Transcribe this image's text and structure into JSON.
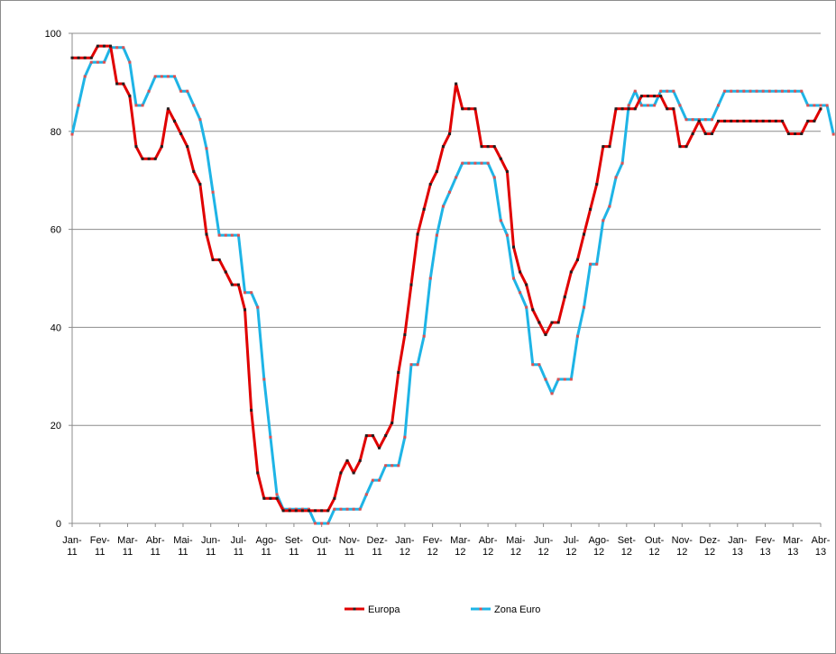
{
  "chart_data": {
    "type": "line",
    "title": "",
    "xlabel": "",
    "ylabel": "",
    "ylim": [
      0,
      100
    ],
    "y_ticks": [
      0,
      20,
      40,
      60,
      80,
      100
    ],
    "grid": "horizontal",
    "legend_position": "bottom",
    "x_tick_labels": [
      [
        "Jan-",
        "11"
      ],
      [
        "Fev-",
        "11"
      ],
      [
        "Mar-",
        "11"
      ],
      [
        "Abr-",
        "11"
      ],
      [
        "Mai-",
        "11"
      ],
      [
        "Jun-",
        "11"
      ],
      [
        "Jul-",
        "11"
      ],
      [
        "Ago-",
        "11"
      ],
      [
        "Set-",
        "11"
      ],
      [
        "Out-",
        "11"
      ],
      [
        "Nov-",
        "11"
      ],
      [
        "Dez-",
        "11"
      ],
      [
        "Jan-",
        "12"
      ],
      [
        "Fev-",
        "12"
      ],
      [
        "Mar-",
        "12"
      ],
      [
        "Abr-",
        "12"
      ],
      [
        "Mai-",
        "12"
      ],
      [
        "Jun-",
        "12"
      ],
      [
        "Jul-",
        "12"
      ],
      [
        "Ago-",
        "12"
      ],
      [
        "Set-",
        "12"
      ],
      [
        "Out-",
        "12"
      ],
      [
        "Nov-",
        "12"
      ],
      [
        "Dez-",
        "12"
      ],
      [
        "Jan-",
        "13"
      ],
      [
        "Fev-",
        "13"
      ],
      [
        "Mar-",
        "13"
      ],
      [
        "Abr-",
        "13"
      ]
    ],
    "series": [
      {
        "name": "Europa",
        "color": "#e00000",
        "marker_color": "#202020",
        "values": [
          95,
          95,
          95,
          95,
          97.4,
          97.4,
          97.4,
          89.7,
          89.7,
          87.2,
          76.9,
          74.4,
          74.4,
          74.4,
          76.9,
          84.6,
          82.1,
          79.5,
          76.9,
          71.8,
          69.2,
          59,
          53.8,
          53.8,
          51.3,
          48.7,
          48.7,
          43.6,
          23.1,
          10.3,
          5.1,
          5.1,
          5.1,
          2.6,
          2.6,
          2.6,
          2.6,
          2.6,
          2.6,
          2.6,
          2.6,
          5.1,
          10.3,
          12.8,
          10.3,
          12.8,
          17.9,
          17.9,
          15.4,
          17.9,
          20.5,
          30.8,
          38.5,
          48.7,
          59,
          64.1,
          69.2,
          71.8,
          76.9,
          79.5,
          89.7,
          84.6,
          84.6,
          84.6,
          76.9,
          76.9,
          76.9,
          74.4,
          71.8,
          56.4,
          51.3,
          48.7,
          43.6,
          41,
          38.5,
          41,
          41,
          46.2,
          51.3,
          53.8,
          59,
          64.1,
          69.2,
          76.9,
          76.9,
          84.6,
          84.6,
          84.6,
          84.6,
          87.2,
          87.2,
          87.2,
          87.2,
          84.6,
          84.6,
          76.9,
          76.9,
          79.5,
          82.1,
          79.5,
          79.5,
          82.1,
          82.1,
          82.1,
          82.1,
          82.1,
          82.1,
          82.1,
          82.1,
          82.1,
          82.1,
          82.1,
          79.5,
          79.5,
          79.5,
          82.1,
          82.1,
          84.6
        ]
      },
      {
        "name": "Zona Euro",
        "color": "#1eb4e6",
        "marker_color": "#e05050",
        "values": [
          79.4,
          85.3,
          91.2,
          94.1,
          94.1,
          94.1,
          97.1,
          97.1,
          97.1,
          94.1,
          85.3,
          85.3,
          88.2,
          91.2,
          91.2,
          91.2,
          91.2,
          88.2,
          88.2,
          85.3,
          82.4,
          76.5,
          67.6,
          58.8,
          58.8,
          58.8,
          58.8,
          47.1,
          47.1,
          44.1,
          29.4,
          17.6,
          5.9,
          2.9,
          2.9,
          2.9,
          2.9,
          2.9,
          0,
          0,
          0,
          2.9,
          2.9,
          2.9,
          2.9,
          2.9,
          5.9,
          8.8,
          8.8,
          11.8,
          11.8,
          11.8,
          17.6,
          32.4,
          32.4,
          38.2,
          50,
          58.8,
          64.7,
          67.6,
          70.6,
          73.5,
          73.5,
          73.5,
          73.5,
          73.5,
          70.6,
          61.8,
          58.8,
          50,
          47.1,
          44.1,
          32.4,
          32.4,
          29.4,
          26.5,
          29.4,
          29.4,
          29.4,
          38.2,
          44.1,
          52.9,
          52.9,
          61.8,
          64.7,
          70.6,
          73.5,
          85.3,
          88.2,
          85.3,
          85.3,
          85.3,
          88.2,
          88.2,
          88.2,
          85.3,
          82.4,
          82.4,
          82.4,
          82.4,
          82.4,
          85.3,
          88.2,
          88.2,
          88.2,
          88.2,
          88.2,
          88.2,
          88.2,
          88.2,
          88.2,
          88.2,
          88.2,
          88.2,
          88.2,
          85.3,
          85.3,
          85.3,
          85.3,
          79.4
        ]
      }
    ]
  }
}
